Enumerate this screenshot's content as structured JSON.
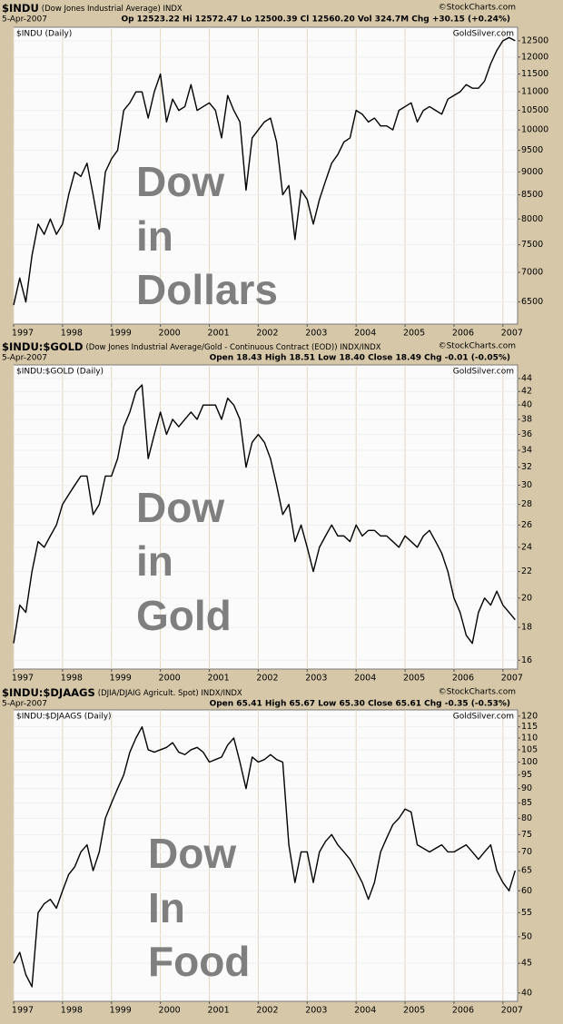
{
  "chart_data": [
    {
      "type": "line",
      "title": "$INDU",
      "subtitle": "(Dow Jones Industrial Average) INDX",
      "date": "5-Apr-2007",
      "quote": "Op 12523.22 Hi 12572.47 Lo 12500.39 Cl 12560.20 Vol 324.7M Chg +30.15 (+0.24%)",
      "source": "©StockCharts.com",
      "inner_label": "$INDU (Daily)",
      "watermark": "GoldSilver.com",
      "annotation": [
        "Dow",
        "in",
        "Dollars"
      ],
      "log_scale": true,
      "grid": true,
      "color": "#000000",
      "xlim": [
        1997,
        2007.3
      ],
      "xticks": [
        1997,
        1998,
        1999,
        2000,
        2001,
        2002,
        2003,
        2004,
        2005,
        2006,
        2007
      ],
      "ylim": [
        6150,
        12930
      ],
      "yticks": [
        6500,
        7000,
        7500,
        8000,
        8500,
        9000,
        9500,
        10000,
        10500,
        11000,
        11500,
        12000,
        12500
      ],
      "x": [
        1997,
        1997.125,
        1997.25,
        1997.375,
        1997.5,
        1997.625,
        1997.75,
        1997.875,
        1998,
        1998.125,
        1998.25,
        1998.375,
        1998.5,
        1998.625,
        1998.75,
        1998.875,
        1999,
        1999.125,
        1999.25,
        1999.375,
        1999.5,
        1999.625,
        1999.75,
        1999.875,
        2000,
        2000.125,
        2000.25,
        2000.375,
        2000.5,
        2000.625,
        2000.75,
        2000.875,
        2001,
        2001.125,
        2001.25,
        2001.375,
        2001.5,
        2001.625,
        2001.75,
        2001.875,
        2002,
        2002.125,
        2002.25,
        2002.375,
        2002.5,
        2002.625,
        2002.75,
        2002.875,
        2003,
        2003.125,
        2003.25,
        2003.375,
        2003.5,
        2003.625,
        2003.75,
        2003.875,
        2004,
        2004.125,
        2004.25,
        2004.375,
        2004.5,
        2004.625,
        2004.75,
        2004.875,
        2005,
        2005.125,
        2005.25,
        2005.375,
        2005.5,
        2005.625,
        2005.75,
        2005.875,
        2006,
        2006.125,
        2006.25,
        2006.375,
        2006.5,
        2006.625,
        2006.75,
        2006.875,
        2007,
        2007.125,
        2007.25
      ],
      "values": [
        6450,
        6900,
        6500,
        7300,
        7900,
        7700,
        8000,
        7700,
        7900,
        8500,
        9000,
        8900,
        9200,
        8500,
        7800,
        9000,
        9300,
        9500,
        10500,
        10700,
        11000,
        11000,
        10300,
        11000,
        11500,
        10200,
        10800,
        10500,
        10600,
        11200,
        10500,
        10600,
        10700,
        10500,
        9800,
        10900,
        10500,
        10200,
        8600,
        9800,
        10000,
        10200,
        10300,
        9700,
        8500,
        8700,
        7600,
        8600,
        8400,
        7900,
        8400,
        8800,
        9200,
        9400,
        9700,
        9800,
        10500,
        10400,
        10200,
        10300,
        10100,
        10100,
        10000,
        10500,
        10600,
        10700,
        10200,
        10500,
        10600,
        10500,
        10400,
        10800,
        10900,
        11000,
        11200,
        11100,
        11100,
        11300,
        11800,
        12200,
        12500,
        12600,
        12500
      ]
    },
    {
      "type": "line",
      "title": "$INDU:$GOLD",
      "subtitle": "(Dow Jones Industrial Average/Gold - Continuous Contract (EOD)) INDX/INDX",
      "date": "5-Apr-2007",
      "quote": "Open 18.43 High 18.51 Low 18.40 Close 18.49 Chg -0.01 (-0.05%)",
      "source": "©StockCharts.com",
      "inner_label": "$INDU:$GOLD (Daily)",
      "watermark": "GoldSilver.com",
      "annotation": [
        "Dow",
        "in",
        "Gold"
      ],
      "log_scale": true,
      "grid": true,
      "color": "#000000",
      "xlim": [
        1997,
        2007.3
      ],
      "xticks": [
        1997,
        1998,
        1999,
        2000,
        2001,
        2002,
        2003,
        2004,
        2005,
        2006,
        2007
      ],
      "ylim": [
        15.5,
        46.2
      ],
      "yticks": [
        16,
        18,
        20,
        22,
        24,
        26,
        28,
        30,
        32,
        34,
        36,
        38,
        40,
        42,
        44
      ],
      "x": [
        1997,
        1997.125,
        1997.25,
        1997.375,
        1997.5,
        1997.625,
        1997.75,
        1997.875,
        1998,
        1998.125,
        1998.25,
        1998.375,
        1998.5,
        1998.625,
        1998.75,
        1998.875,
        1999,
        1999.125,
        1999.25,
        1999.375,
        1999.5,
        1999.625,
        1999.75,
        1999.875,
        2000,
        2000.125,
        2000.25,
        2000.375,
        2000.5,
        2000.625,
        2000.75,
        2000.875,
        2001,
        2001.125,
        2001.25,
        2001.375,
        2001.5,
        2001.625,
        2001.75,
        2001.875,
        2002,
        2002.125,
        2002.25,
        2002.375,
        2002.5,
        2002.625,
        2002.75,
        2002.875,
        2003,
        2003.125,
        2003.25,
        2003.375,
        2003.5,
        2003.625,
        2003.75,
        2003.875,
        2004,
        2004.125,
        2004.25,
        2004.375,
        2004.5,
        2004.625,
        2004.75,
        2004.875,
        2005,
        2005.125,
        2005.25,
        2005.375,
        2005.5,
        2005.625,
        2005.75,
        2005.875,
        2006,
        2006.125,
        2006.25,
        2006.375,
        2006.5,
        2006.625,
        2006.75,
        2006.875,
        2007,
        2007.125,
        2007.25
      ],
      "values": [
        17,
        19.5,
        19,
        22,
        24.5,
        24,
        25,
        26,
        28,
        29,
        30,
        31,
        31,
        27,
        28,
        31,
        31,
        33,
        37,
        39,
        42,
        43,
        33,
        36,
        39,
        36,
        38,
        37,
        38,
        39,
        38,
        40,
        40,
        40,
        38,
        41,
        40,
        38,
        32,
        35,
        36,
        35,
        33,
        30,
        27,
        28,
        24.5,
        26,
        24,
        22,
        24,
        25,
        26,
        25,
        25,
        24.5,
        26,
        25,
        25.5,
        25.5,
        25,
        25,
        24.5,
        24,
        25,
        24.5,
        24,
        25,
        25.5,
        24.5,
        23.5,
        22,
        20,
        19,
        17.5,
        17,
        19,
        20,
        19.5,
        20.5,
        19.5,
        19,
        18.5
      ]
    },
    {
      "type": "line",
      "title": "$INDU:$DJAAGS",
      "subtitle": "(DJIA/DJAIG Agricult. Spot) INDX/INDX",
      "date": "5-Apr-2007",
      "quote": "Open 65.41 High 65.67 Low 65.30 Close 65.61 Chg -0.35 (-0.53%)",
      "source": "©StockCharts.com",
      "inner_label": "$INDU:$DJAAGS (Daily)",
      "watermark": "GoldSilver.com",
      "annotation": [
        "Dow",
        "In",
        "Food"
      ],
      "log_scale": true,
      "grid": true,
      "color": "#000000",
      "xlim": [
        1997,
        2007.3
      ],
      "xticks": [
        1997,
        1998,
        1999,
        2000,
        2001,
        2002,
        2003,
        2004,
        2005,
        2006,
        2007
      ],
      "ylim": [
        38.7,
        123
      ],
      "yticks": [
        40,
        45,
        50,
        55,
        60,
        65,
        70,
        75,
        80,
        85,
        90,
        95,
        100,
        105,
        110,
        115,
        120
      ],
      "x": [
        1997,
        1997.125,
        1997.25,
        1997.375,
        1997.5,
        1997.625,
        1997.75,
        1997.875,
        1998,
        1998.125,
        1998.25,
        1998.375,
        1998.5,
        1998.625,
        1998.75,
        1998.875,
        1999,
        1999.125,
        1999.25,
        1999.375,
        1999.5,
        1999.625,
        1999.75,
        1999.875,
        2000,
        2000.125,
        2000.25,
        2000.375,
        2000.5,
        2000.625,
        2000.75,
        2000.875,
        2001,
        2001.125,
        2001.25,
        2001.375,
        2001.5,
        2001.625,
        2001.75,
        2001.875,
        2002,
        2002.125,
        2002.25,
        2002.375,
        2002.5,
        2002.625,
        2002.75,
        2002.875,
        2003,
        2003.125,
        2003.25,
        2003.375,
        2003.5,
        2003.625,
        2003.75,
        2003.875,
        2004,
        2004.125,
        2004.25,
        2004.375,
        2004.5,
        2004.625,
        2004.75,
        2004.875,
        2005,
        2005.125,
        2005.25,
        2005.375,
        2005.5,
        2005.625,
        2005.75,
        2005.875,
        2006,
        2006.125,
        2006.25,
        2006.375,
        2006.5,
        2006.625,
        2006.75,
        2006.875,
        2007,
        2007.125,
        2007.25
      ],
      "values": [
        45,
        47,
        43,
        41,
        55,
        57,
        58,
        56,
        60,
        64,
        66,
        70,
        72,
        65,
        70,
        80,
        85,
        90,
        95,
        104,
        110,
        115,
        105,
        104,
        105,
        106,
        108,
        104,
        103,
        105,
        106,
        104,
        100,
        101,
        102,
        107,
        110,
        100,
        90,
        102,
        100,
        101,
        103,
        101,
        100,
        72,
        62,
        70,
        70,
        62,
        70,
        73,
        75,
        72,
        70,
        68,
        65,
        62,
        58,
        62,
        70,
        74,
        78,
        80,
        83,
        82,
        72,
        71,
        70,
        71,
        72,
        70,
        70,
        71,
        72,
        70,
        68,
        70,
        72,
        65,
        62,
        60,
        65
      ]
    }
  ]
}
